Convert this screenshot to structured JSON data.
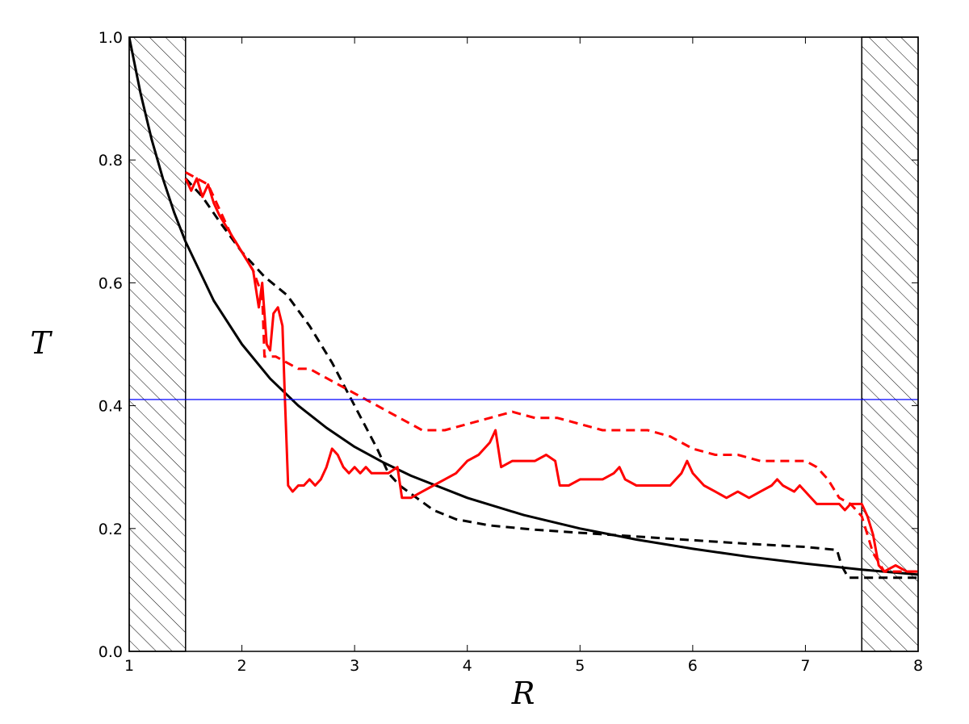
{
  "chart_data": {
    "type": "line",
    "xlabel": "R",
    "ylabel": "T",
    "xlim": [
      1,
      8
    ],
    "ylim": [
      0,
      1
    ],
    "xticks": [
      1,
      2,
      3,
      4,
      5,
      6,
      7,
      8
    ],
    "xtick_labels": [
      "1",
      "2",
      "3",
      "4",
      "5",
      "6",
      "7",
      "8"
    ],
    "yticks": [
      0.0,
      0.2,
      0.4,
      0.6,
      0.8,
      1.0
    ],
    "ytick_labels": [
      "0.0",
      "0.2",
      "0.4",
      "0.6",
      "0.8",
      "1.0"
    ],
    "grid": false,
    "hatched_regions": [
      {
        "x0": 1,
        "x1": 1.5
      },
      {
        "x0": 7.5,
        "x1": 8
      }
    ],
    "hline": {
      "y": 0.41,
      "color": "#0000ff"
    },
    "series": [
      {
        "style": "solid",
        "color": "#000000",
        "x": [
          1,
          1.1,
          1.2,
          1.3,
          1.4,
          1.5,
          1.75,
          2.0,
          2.25,
          2.5,
          2.75,
          3.0,
          3.25,
          3.5,
          4.0,
          4.5,
          5.0,
          5.5,
          6.0,
          6.5,
          7.0,
          7.5,
          8.0
        ],
        "y": [
          1.0,
          0.909,
          0.833,
          0.769,
          0.714,
          0.667,
          0.571,
          0.5,
          0.444,
          0.4,
          0.364,
          0.333,
          0.308,
          0.286,
          0.25,
          0.222,
          0.2,
          0.182,
          0.167,
          0.154,
          0.143,
          0.133,
          0.125
        ]
      },
      {
        "style": "dashed",
        "color": "#000000",
        "x": [
          1.5,
          1.65,
          1.8,
          2.0,
          2.2,
          2.4,
          2.6,
          2.8,
          3.0,
          3.2,
          3.3,
          3.4,
          3.55,
          3.7,
          3.9,
          4.2,
          4.6,
          5.0,
          5.5,
          6.0,
          6.5,
          7.0,
          7.28,
          7.32,
          7.38,
          7.5,
          8.0
        ],
        "y": [
          0.77,
          0.74,
          0.7,
          0.65,
          0.61,
          0.58,
          0.53,
          0.47,
          0.4,
          0.33,
          0.29,
          0.27,
          0.25,
          0.23,
          0.215,
          0.205,
          0.198,
          0.193,
          0.187,
          0.181,
          0.175,
          0.17,
          0.165,
          0.14,
          0.12,
          0.12,
          0.12
        ]
      },
      {
        "style": "solid",
        "color": "#ff0000",
        "x": [
          1.5,
          1.55,
          1.6,
          1.65,
          1.7,
          1.75,
          1.8,
          1.9,
          2.0,
          2.1,
          2.15,
          2.18,
          2.22,
          2.25,
          2.28,
          2.32,
          2.36,
          2.38,
          2.41,
          2.45,
          2.5,
          2.55,
          2.6,
          2.65,
          2.7,
          2.75,
          2.8,
          2.85,
          2.9,
          2.95,
          3.0,
          3.05,
          3.1,
          3.15,
          3.2,
          3.3,
          3.38,
          3.42,
          3.5,
          3.6,
          3.7,
          3.8,
          3.9,
          4.0,
          4.1,
          4.2,
          4.25,
          4.3,
          4.4,
          4.5,
          4.6,
          4.7,
          4.78,
          4.82,
          4.9,
          5.0,
          5.1,
          5.2,
          5.3,
          5.35,
          5.4,
          5.5,
          5.6,
          5.7,
          5.8,
          5.9,
          5.95,
          6.0,
          6.1,
          6.2,
          6.3,
          6.4,
          6.5,
          6.6,
          6.7,
          6.75,
          6.8,
          6.9,
          6.95,
          7.0,
          7.1,
          7.2,
          7.3,
          7.35,
          7.4,
          7.45,
          7.5,
          7.55,
          7.6,
          7.65,
          7.7,
          7.8,
          7.9,
          8.0
        ],
        "y": [
          0.77,
          0.75,
          0.77,
          0.74,
          0.76,
          0.73,
          0.71,
          0.68,
          0.65,
          0.62,
          0.56,
          0.6,
          0.5,
          0.49,
          0.55,
          0.56,
          0.53,
          0.42,
          0.27,
          0.26,
          0.27,
          0.27,
          0.28,
          0.27,
          0.28,
          0.3,
          0.33,
          0.32,
          0.3,
          0.29,
          0.3,
          0.29,
          0.3,
          0.29,
          0.29,
          0.29,
          0.3,
          0.25,
          0.25,
          0.26,
          0.27,
          0.28,
          0.29,
          0.31,
          0.32,
          0.34,
          0.36,
          0.3,
          0.31,
          0.31,
          0.31,
          0.32,
          0.31,
          0.27,
          0.27,
          0.28,
          0.28,
          0.28,
          0.29,
          0.3,
          0.28,
          0.27,
          0.27,
          0.27,
          0.27,
          0.29,
          0.31,
          0.29,
          0.27,
          0.26,
          0.25,
          0.26,
          0.25,
          0.26,
          0.27,
          0.28,
          0.27,
          0.26,
          0.27,
          0.26,
          0.24,
          0.24,
          0.24,
          0.23,
          0.24,
          0.24,
          0.24,
          0.22,
          0.19,
          0.14,
          0.13,
          0.14,
          0.13,
          0.13
        ]
      },
      {
        "style": "dashed",
        "color": "#ff0000",
        "x": [
          1.5,
          1.6,
          1.7,
          1.8,
          1.9,
          2.0,
          2.1,
          2.18,
          2.2,
          2.3,
          2.4,
          2.5,
          2.6,
          2.7,
          2.8,
          2.9,
          3.0,
          3.1,
          3.2,
          3.4,
          3.6,
          3.8,
          4.0,
          4.2,
          4.4,
          4.6,
          4.8,
          5.0,
          5.2,
          5.4,
          5.6,
          5.8,
          6.0,
          6.2,
          6.4,
          6.6,
          6.8,
          7.0,
          7.1,
          7.2,
          7.3,
          7.4,
          7.5,
          7.6,
          7.7,
          8.0
        ],
        "y": [
          0.78,
          0.77,
          0.76,
          0.72,
          0.68,
          0.65,
          0.62,
          0.58,
          0.48,
          0.48,
          0.47,
          0.46,
          0.46,
          0.45,
          0.44,
          0.43,
          0.42,
          0.41,
          0.4,
          0.38,
          0.36,
          0.36,
          0.37,
          0.38,
          0.39,
          0.38,
          0.38,
          0.37,
          0.36,
          0.36,
          0.36,
          0.35,
          0.33,
          0.32,
          0.32,
          0.31,
          0.31,
          0.31,
          0.3,
          0.28,
          0.25,
          0.24,
          0.22,
          0.16,
          0.13,
          0.13
        ]
      }
    ]
  }
}
